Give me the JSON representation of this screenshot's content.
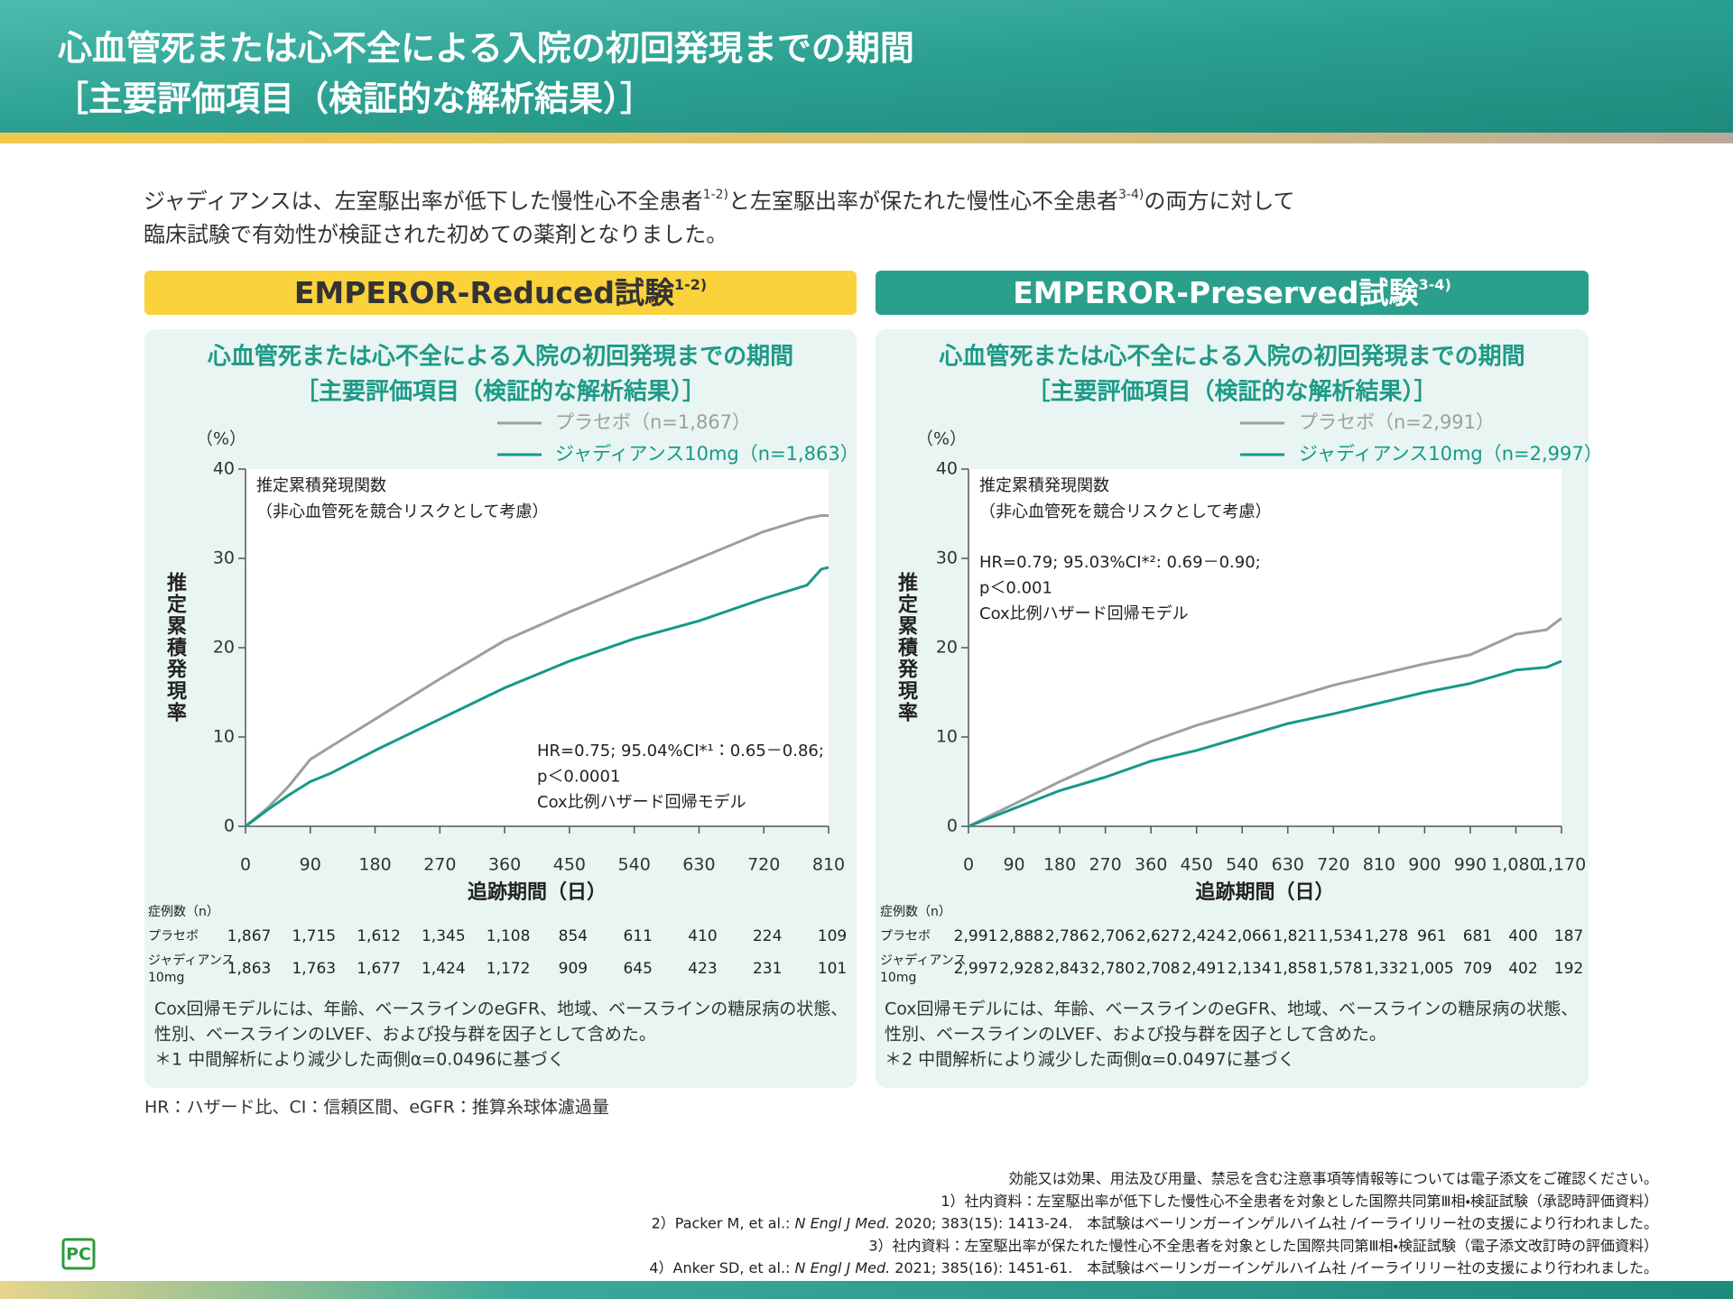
{
  "header": {
    "title": "心血管死または心不全による入院の初回発現までの期間",
    "subtitle": "［主要評価項目（検証的な解析結果）］"
  },
  "intro": {
    "l1a": "ジャディアンスは、左室駆出率が低下した慢性心不全患者",
    "s1": "1-2)",
    "l1b": "と左室駆出率が保たれた慢性心不全患者",
    "s2": "3-4)",
    "l1c": "の両方に対して",
    "l2": "臨床試験で有効性が検証された初めての薬剤となりました。"
  },
  "panels": [
    {
      "trial": "EMPEROR-Reduced試験",
      "trial_ref": "1-2)",
      "risk_table": {
        "label": "症例数（n）",
        "rows": [
          {
            "label": [
              "プラセボ"
            ],
            "values": [
              "1,867",
              "1,715",
              "1,612",
              "1,345",
              "1,108",
              "854",
              "611",
              "410",
              "224",
              "109"
            ]
          },
          {
            "label": [
              "ジャディアンス",
              "10mg"
            ],
            "values": [
              "1,863",
              "1,763",
              "1,677",
              "1,424",
              "1,172",
              "909",
              "645",
              "423",
              "231",
              "101"
            ]
          }
        ]
      },
      "notes": [
        "Cox回帰モデルには、年齢、ベースラインのeGFR、地域、ベースラインの糖尿病の状態、",
        "性別、ベースラインのLVEF、および投与群を因子として含めた。",
        "＊1 中間解析により減少した両側α=0.0496に基づく"
      ]
    },
    {
      "trial": "EMPEROR-Preserved試験",
      "trial_ref": "3-4)",
      "risk_table": {
        "label": "症例数（n）",
        "rows": [
          {
            "label": [
              "プラセボ"
            ],
            "values": [
              "2,991",
              "2,888",
              "2,786",
              "2,706",
              "2,627",
              "2,424",
              "2,066",
              "1,821",
              "1,534",
              "1,278",
              "961",
              "681",
              "400",
              "187"
            ]
          },
          {
            "label": [
              "ジャディアンス",
              "10mg"
            ],
            "values": [
              "2,997",
              "2,928",
              "2,843",
              "2,780",
              "2,708",
              "2,491",
              "2,134",
              "1,858",
              "1,578",
              "1,332",
              "1,005",
              "709",
              "402",
              "192"
            ]
          }
        ]
      },
      "notes": [
        "Cox回帰モデルには、年齢、ベースラインのeGFR、地域、ベースラインの糖尿病の状態、",
        "性別、ベースラインのLVEF、および投与群を因子として含めた。",
        "＊2 中間解析により減少した両側α=0.0497に基づく"
      ]
    }
  ],
  "chart_data": [
    {
      "type": "line",
      "title": "心血管死または心不全による入院の初回発現までの期間",
      "subtitle": "［主要評価項目（検証的な解析結果）］",
      "y_unit": "（%）",
      "ylabel": "推定累積発現率",
      "xlabel": "追跡期間（日）",
      "annotations": [
        "推定累積発現関数",
        "（非心血管死を競合リスクとして考慮）"
      ],
      "hr_lines": [
        "HR=0.75; 95.04%CI*¹：0.65－0.86;",
        "p＜0.0001",
        "Cox比例ハザード回帰モデル"
      ],
      "x": [
        0,
        30,
        60,
        90,
        120,
        180,
        270,
        360,
        450,
        540,
        630,
        720,
        780,
        800,
        810
      ],
      "series": [
        {
          "name": "プラセボ（n=1,867）",
          "color": "#9e9e9e",
          "values": [
            0,
            2,
            4.5,
            7.5,
            9,
            12,
            16.5,
            20.8,
            24,
            27,
            30,
            33,
            34.5,
            34.8,
            34.8
          ]
        },
        {
          "name": "ジャディアンス10mg（n=1,863）",
          "color": "#14998a",
          "values": [
            0,
            1.8,
            3.5,
            5,
            6,
            8.5,
            12,
            15.5,
            18.5,
            21,
            23,
            25.5,
            27,
            28.8,
            29
          ]
        }
      ],
      "xlim": [
        0,
        810
      ],
      "ylim": [
        0,
        40
      ],
      "xticks": [
        0,
        90,
        180,
        270,
        360,
        450,
        540,
        630,
        720,
        810
      ],
      "yticks": [
        0,
        10,
        20,
        30,
        40
      ]
    },
    {
      "type": "line",
      "title": "心血管死または心不全による入院の初回発現までの期間",
      "subtitle": "［主要評価項目（検証的な解析結果）］",
      "y_unit": "（%）",
      "ylabel": "推定累積発現率",
      "xlabel": "追跡期間（日）",
      "annotations": [
        "推定累積発現関数",
        "（非心血管死を競合リスクとして考慮）"
      ],
      "hr_lines": [
        "HR=0.79; 95.03%CI*²: 0.69－0.90;",
        "p＜0.001",
        "Cox比例ハザード回帰モデル"
      ],
      "x": [
        0,
        90,
        180,
        270,
        360,
        450,
        540,
        630,
        720,
        810,
        900,
        990,
        1080,
        1140,
        1170
      ],
      "series": [
        {
          "name": "プラセボ（n=2,991）",
          "color": "#9e9e9e",
          "values": [
            0,
            2.5,
            5,
            7.3,
            9.5,
            11.3,
            12.8,
            14.3,
            15.8,
            17,
            18.2,
            19.2,
            21.5,
            22,
            23.3
          ]
        },
        {
          "name": "ジャディアンス10mg（n=2,997）",
          "color": "#14998a",
          "values": [
            0,
            2,
            4,
            5.5,
            7.3,
            8.5,
            10,
            11.5,
            12.6,
            13.8,
            15,
            16,
            17.5,
            17.8,
            18.5
          ]
        }
      ],
      "xlim": [
        0,
        1170
      ],
      "ylim": [
        0,
        40
      ],
      "xticks": [
        0,
        90,
        180,
        270,
        360,
        450,
        540,
        630,
        720,
        810,
        900,
        990,
        {
          "value": 1080,
          "label": "1,080"
        },
        {
          "value": 1170,
          "label": "1,170"
        }
      ],
      "yticks": [
        0,
        10,
        20,
        30,
        40
      ]
    }
  ],
  "footer": {
    "abbrev": "HR：ハザード比、CI：信頼区間、eGFR：推算糸球体濾過量",
    "refs": [
      [
        "効能又は効果、用法及び用量、禁忌を含む注意事項等情報等については電子添文をご確認ください。"
      ],
      [
        "1）社内資料：左室駆出率が低下した慢性心不全患者を対象とした国際共同第Ⅲ相・検証試験（承認時評価資料）"
      ],
      [
        "2）Packer M, et al.: ",
        "N Engl J Med.",
        " 2020; 383(15): 1413-24.　本試験はベーリンガーインゲルハイム社 /イーライリリー社の支援により行われました。"
      ],
      [
        "3）社内資料：左室駆出率が保たれた慢性心不全患者を対象とした国際共同第Ⅲ相・検証試験（電子添文改訂時の評価資料）"
      ],
      [
        "4）Anker SD, et al.: ",
        "N Engl J Med.",
        " 2021; 385(16): 1451-61.　本試験はベーリンガーインゲルハイム社 /イーライリリー社の支援により行われました。"
      ]
    ],
    "logo": "PC"
  }
}
